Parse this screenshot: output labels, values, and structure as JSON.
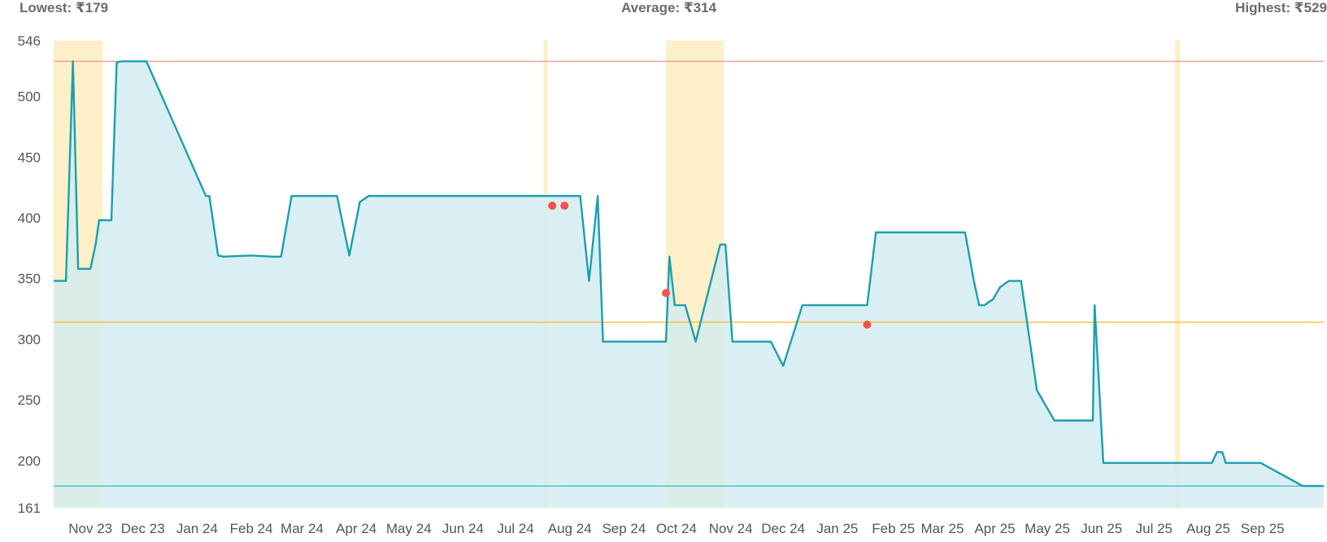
{
  "stats": {
    "lowest": "Lowest: ₹179",
    "average": "Average: ₹314",
    "highest": "Highest: ₹529"
  },
  "chart_data": {
    "type": "area",
    "title": "",
    "xlabel": "",
    "ylabel": "",
    "ylim": [
      161,
      546
    ],
    "y_ticks": [
      546,
      500,
      450,
      400,
      350,
      300,
      250,
      200,
      161
    ],
    "x_range": [
      "2023-10-15",
      "2025-10-10"
    ],
    "x_ticks": [
      {
        "date": "2023-11-05",
        "label": "Nov 23"
      },
      {
        "date": "2023-12-05",
        "label": "Dec 23"
      },
      {
        "date": "2024-01-05",
        "label": "Jan 24"
      },
      {
        "date": "2024-02-05",
        "label": "Feb 24"
      },
      {
        "date": "2024-03-05",
        "label": "Mar 24"
      },
      {
        "date": "2024-04-05",
        "label": "Apr 24"
      },
      {
        "date": "2024-05-05",
        "label": "May 24"
      },
      {
        "date": "2024-06-05",
        "label": "Jun 24"
      },
      {
        "date": "2024-07-05",
        "label": "Jul 24"
      },
      {
        "date": "2024-08-05",
        "label": "Aug 24"
      },
      {
        "date": "2024-09-05",
        "label": "Sep 24"
      },
      {
        "date": "2024-10-05",
        "label": "Oct 24"
      },
      {
        "date": "2024-11-05",
        "label": "Nov 24"
      },
      {
        "date": "2024-12-05",
        "label": "Dec 24"
      },
      {
        "date": "2025-01-05",
        "label": "Jan 25"
      },
      {
        "date": "2025-02-06",
        "label": "Feb 25"
      },
      {
        "date": "2025-03-06",
        "label": "Mar 25"
      },
      {
        "date": "2025-04-05",
        "label": "Apr 25"
      },
      {
        "date": "2025-05-05",
        "label": "May 25"
      },
      {
        "date": "2025-06-05",
        "label": "Jun 25"
      },
      {
        "date": "2025-07-05",
        "label": "Jul 25"
      },
      {
        "date": "2025-08-05",
        "label": "Aug 25"
      },
      {
        "date": "2025-09-05",
        "label": "Sep 25"
      }
    ],
    "grid": false,
    "reference_lines": [
      {
        "value": 529,
        "color": "#f59a8e"
      },
      {
        "value": 314,
        "color": "#f5c63a"
      },
      {
        "value": 179,
        "color": "#4fc3cc"
      }
    ],
    "highlight_bands": [
      {
        "start": "2023-10-15",
        "end": "2023-11-12",
        "color": "#fdf0c8"
      },
      {
        "start": "2024-07-21",
        "end": "2024-07-23",
        "color": "#fdf0c8"
      },
      {
        "start": "2024-09-29",
        "end": "2024-11-01",
        "color": "#fdf0c8"
      },
      {
        "start": "2025-07-17",
        "end": "2025-07-20",
        "color": "#fdf0c8"
      }
    ],
    "series": [
      {
        "line_color": "#1a9fb0",
        "fill_color": "#d2ebf0",
        "points": [
          [
            "2023-10-15",
            348
          ],
          [
            "2023-10-22",
            348
          ],
          [
            "2023-10-26",
            529
          ],
          [
            "2023-10-29",
            358
          ],
          [
            "2023-11-05",
            358
          ],
          [
            "2023-11-08",
            378
          ],
          [
            "2023-11-10",
            398
          ],
          [
            "2023-11-17",
            398
          ],
          [
            "2023-11-20",
            528
          ],
          [
            "2023-11-23",
            529
          ],
          [
            "2023-12-07",
            529
          ],
          [
            "2024-01-10",
            418
          ],
          [
            "2024-01-12",
            418
          ],
          [
            "2024-01-17",
            369
          ],
          [
            "2024-01-20",
            368
          ],
          [
            "2024-02-05",
            369
          ],
          [
            "2024-02-17",
            368
          ],
          [
            "2024-02-22",
            368
          ],
          [
            "2024-02-28",
            418
          ],
          [
            "2024-03-25",
            418
          ],
          [
            "2024-04-01",
            369
          ],
          [
            "2024-04-07",
            413
          ],
          [
            "2024-04-12",
            418
          ],
          [
            "2024-05-20",
            418
          ],
          [
            "2024-08-11",
            418
          ],
          [
            "2024-08-16",
            348
          ],
          [
            "2024-08-21",
            418
          ],
          [
            "2024-08-24",
            298
          ],
          [
            "2024-09-20",
            298
          ],
          [
            "2024-09-29",
            298
          ],
          [
            "2024-10-01",
            368
          ],
          [
            "2024-10-04",
            328
          ],
          [
            "2024-10-10",
            328
          ],
          [
            "2024-10-16",
            298
          ],
          [
            "2024-10-30",
            378
          ],
          [
            "2024-11-02",
            378
          ],
          [
            "2024-11-06",
            298
          ],
          [
            "2024-11-10",
            298
          ],
          [
            "2024-11-28",
            298
          ],
          [
            "2024-12-05",
            278
          ],
          [
            "2024-12-16",
            328
          ],
          [
            "2025-01-22",
            328
          ],
          [
            "2025-01-27",
            388
          ],
          [
            "2025-03-19",
            388
          ],
          [
            "2025-03-24",
            348
          ],
          [
            "2025-03-27",
            328
          ],
          [
            "2025-03-30",
            328
          ],
          [
            "2025-04-04",
            333
          ],
          [
            "2025-04-08",
            343
          ],
          [
            "2025-04-13",
            348
          ],
          [
            "2025-04-20",
            348
          ],
          [
            "2025-04-29",
            258
          ],
          [
            "2025-05-09",
            233
          ],
          [
            "2025-05-31",
            233
          ],
          [
            "2025-06-01",
            328
          ],
          [
            "2025-06-06",
            198
          ],
          [
            "2025-08-07",
            198
          ],
          [
            "2025-08-10",
            207
          ],
          [
            "2025-08-13",
            207
          ],
          [
            "2025-08-15",
            198
          ],
          [
            "2025-09-04",
            198
          ],
          [
            "2025-09-28",
            179
          ],
          [
            "2025-10-10",
            179
          ]
        ]
      }
    ],
    "markers": [
      {
        "date": "2024-07-26",
        "value": 410,
        "color": "#f4524a"
      },
      {
        "date": "2024-08-02",
        "value": 410,
        "color": "#f4524a"
      },
      {
        "date": "2024-09-29",
        "value": 338,
        "color": "#f4524a"
      },
      {
        "date": "2025-01-22",
        "value": 312,
        "color": "#f4524a"
      }
    ]
  }
}
